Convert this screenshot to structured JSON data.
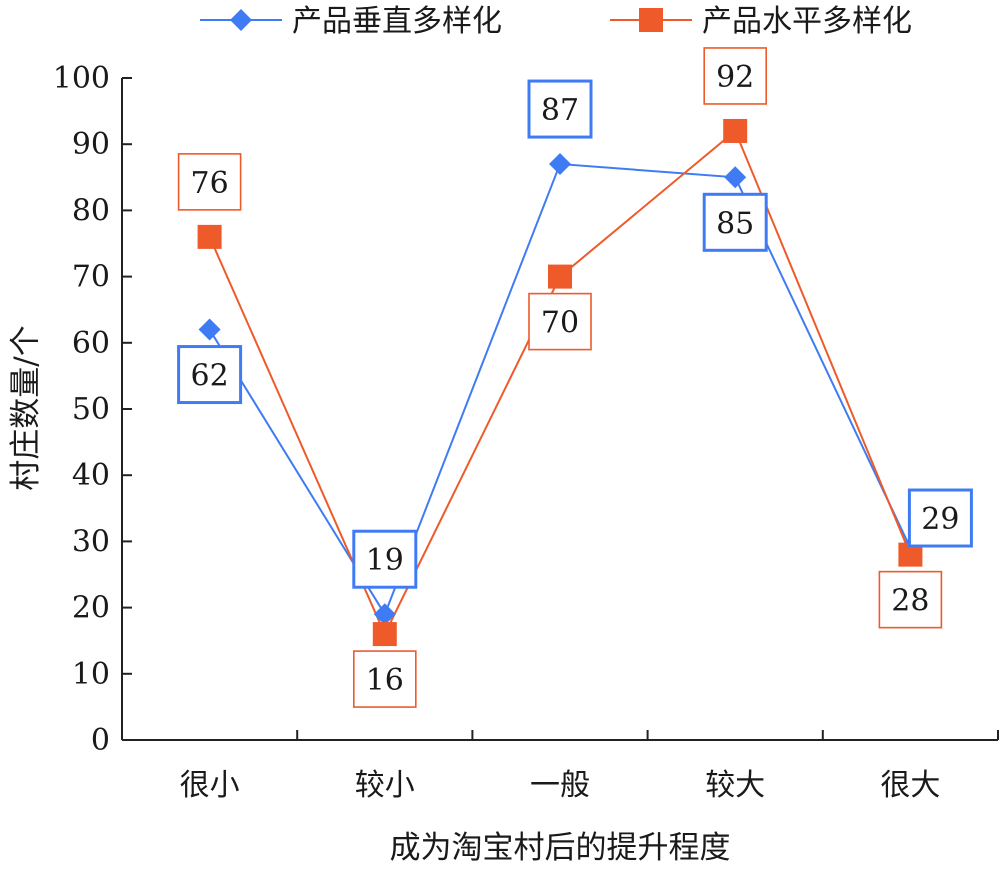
{
  "chart_data": {
    "type": "line",
    "title": "",
    "xlabel": "成为淘宝村后的提升程度",
    "ylabel": "村庄数量/个",
    "categories": [
      "很小",
      "较小",
      "一般",
      "较大",
      "很大"
    ],
    "ylim": [
      0,
      100
    ],
    "yticks": [
      0,
      10,
      20,
      30,
      40,
      50,
      60,
      70,
      80,
      90,
      100
    ],
    "grid": false,
    "legend": "top",
    "series": [
      {
        "name": "产品垂直多样化",
        "values": [
          62,
          19,
          87,
          85,
          29
        ],
        "color": "#3f7cf4",
        "marker": "diamond",
        "label_position": [
          "below",
          "above",
          "above",
          "below",
          "above-right"
        ]
      },
      {
        "name": "产品水平多样化",
        "values": [
          76,
          16,
          70,
          92,
          28
        ],
        "color": "#ee5a2a",
        "marker": "square",
        "label_position": [
          "above",
          "below",
          "below",
          "above",
          "below"
        ]
      }
    ]
  }
}
